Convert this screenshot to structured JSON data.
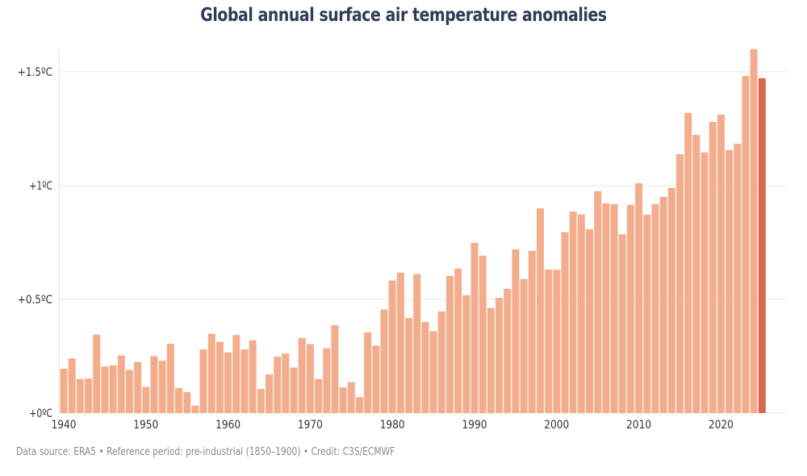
{
  "chart_data": {
    "type": "bar",
    "title": "Global annual surface air temperature anomalies",
    "xlabel": "",
    "ylabel": "",
    "ylim": [
      0,
      1.62
    ],
    "grid": true,
    "yticks": [
      {
        "value": 0,
        "label": "+0ºC"
      },
      {
        "value": 0.5,
        "label": "+0.5ºC"
      },
      {
        "value": 1,
        "label": "+1ºC"
      },
      {
        "value": 1.5,
        "label": "+1.5ºC"
      }
    ],
    "xticks": [
      "1940",
      "1950",
      "1960",
      "1970",
      "1980",
      "1990",
      "2000",
      "2010",
      "2020"
    ],
    "x": [
      1940,
      1941,
      1942,
      1943,
      1944,
      1945,
      1946,
      1947,
      1948,
      1949,
      1950,
      1951,
      1952,
      1953,
      1954,
      1955,
      1956,
      1957,
      1958,
      1959,
      1960,
      1961,
      1962,
      1963,
      1964,
      1965,
      1966,
      1967,
      1968,
      1969,
      1970,
      1971,
      1972,
      1973,
      1974,
      1975,
      1976,
      1977,
      1978,
      1979,
      1980,
      1981,
      1982,
      1983,
      1984,
      1985,
      1986,
      1987,
      1988,
      1989,
      1990,
      1991,
      1992,
      1993,
      1994,
      1995,
      1996,
      1997,
      1998,
      1999,
      2000,
      2001,
      2002,
      2003,
      2004,
      2005,
      2006,
      2007,
      2008,
      2009,
      2010,
      2011,
      2012,
      2013,
      2014,
      2015,
      2016,
      2017,
      2018,
      2019,
      2020,
      2021,
      2022,
      2023,
      2024,
      2025
    ],
    "values": [
      0.195,
      0.24,
      0.15,
      0.152,
      0.345,
      0.205,
      0.21,
      0.253,
      0.19,
      0.225,
      0.115,
      0.25,
      0.23,
      0.305,
      0.11,
      0.093,
      0.033,
      0.28,
      0.348,
      0.313,
      0.267,
      0.343,
      0.28,
      0.32,
      0.106,
      0.17,
      0.248,
      0.262,
      0.2,
      0.33,
      0.303,
      0.15,
      0.285,
      0.387,
      0.113,
      0.136,
      0.07,
      0.355,
      0.297,
      0.455,
      0.583,
      0.617,
      0.418,
      0.611,
      0.4,
      0.36,
      0.447,
      0.603,
      0.635,
      0.518,
      0.748,
      0.692,
      0.462,
      0.507,
      0.546,
      0.72,
      0.589,
      0.713,
      0.9,
      0.631,
      0.63,
      0.795,
      0.886,
      0.873,
      0.808,
      0.975,
      0.922,
      0.918,
      0.786,
      0.915,
      1.01,
      0.872,
      0.918,
      0.95,
      0.99,
      1.138,
      1.319,
      1.223,
      1.145,
      1.28,
      1.312,
      1.156,
      1.184,
      1.482,
      1.6,
      1.472
    ],
    "colors": {
      "bar": "#f4ad8c",
      "highlight": "#d9674b",
      "highlight_year": 2025,
      "grid": "#e6e6e6"
    }
  },
  "footer": "Data source: ERA5 • Reference period: pre-industrial (1850–1900) • Credit: C3S/ECMWF"
}
